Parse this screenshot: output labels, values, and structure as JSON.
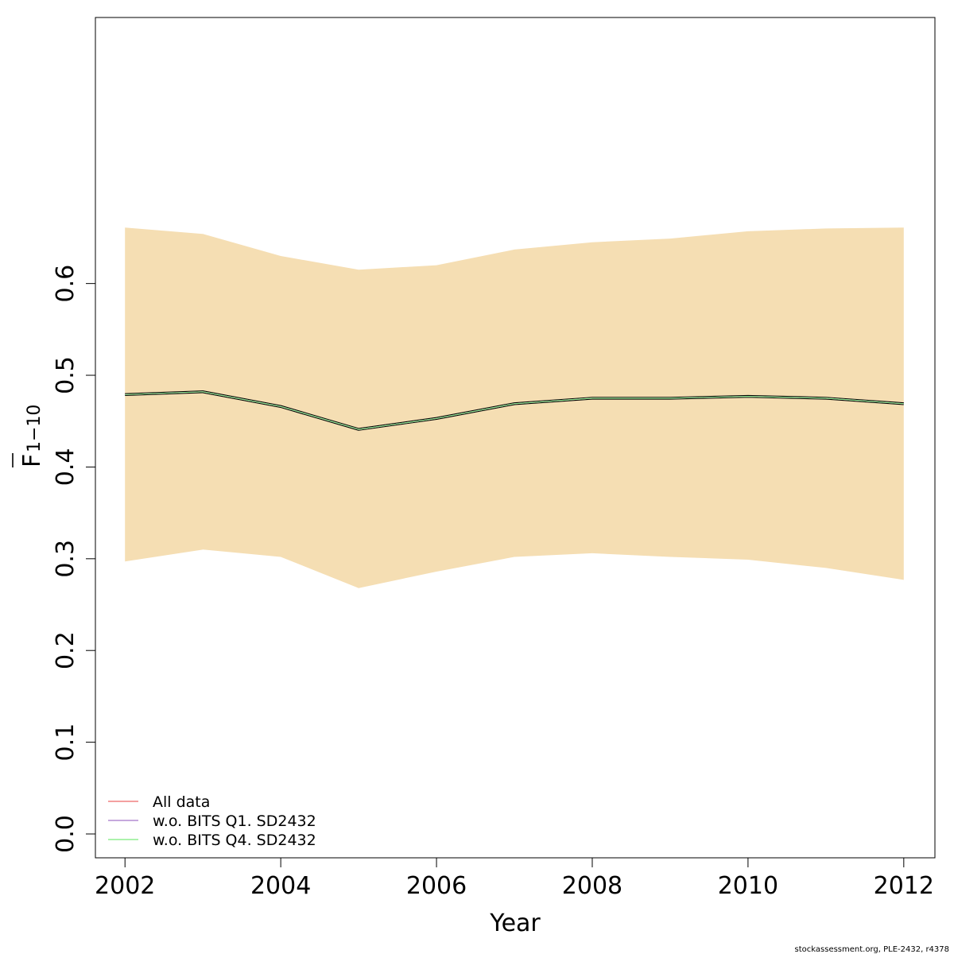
{
  "chart_data": {
    "type": "area",
    "x": [
      2002,
      2003,
      2004,
      2005,
      2006,
      2007,
      2008,
      2009,
      2010,
      2011,
      2012
    ],
    "xlabel": "Year",
    "ylabel_main": "F",
    "ylabel_sub": "1−10",
    "xlim": [
      2001.62,
      2012.4
    ],
    "ylim": [
      -0.026,
      0.89
    ],
    "xticks": [
      "2002",
      "2004",
      "2006",
      "2008",
      "2010",
      "2012"
    ],
    "yticks": [
      "0.0",
      "0.1",
      "0.2",
      "0.3",
      "0.4",
      "0.5",
      "0.6"
    ],
    "band": {
      "upper": [
        0.661,
        0.654,
        0.63,
        0.615,
        0.62,
        0.637,
        0.645,
        0.649,
        0.657,
        0.66,
        0.661
      ],
      "lower": [
        0.297,
        0.31,
        0.302,
        0.268,
        0.286,
        0.302,
        0.306,
        0.302,
        0.299,
        0.29,
        0.277
      ],
      "color": "#f5deb3"
    },
    "series": [
      {
        "name": "All data",
        "values": [
          0.479,
          0.482,
          0.466,
          0.441,
          0.453,
          0.469,
          0.475,
          0.475,
          0.477,
          0.475,
          0.469
        ],
        "color": "#f08080"
      },
      {
        "name": "w.o. BITS Q1. SD2432",
        "values": [
          0.479,
          0.482,
          0.466,
          0.441,
          0.453,
          0.469,
          0.475,
          0.475,
          0.477,
          0.475,
          0.469
        ],
        "color": "#b48cd2"
      },
      {
        "name": "w.o. BITS Q4. SD2432",
        "values": [
          0.479,
          0.482,
          0.466,
          0.441,
          0.453,
          0.469,
          0.475,
          0.475,
          0.477,
          0.475,
          0.469
        ],
        "color": "#90ee90"
      }
    ],
    "legend_position": "bottom-left",
    "grid": false
  },
  "footer": "stockassessment.org, PLE-2432, r4378"
}
